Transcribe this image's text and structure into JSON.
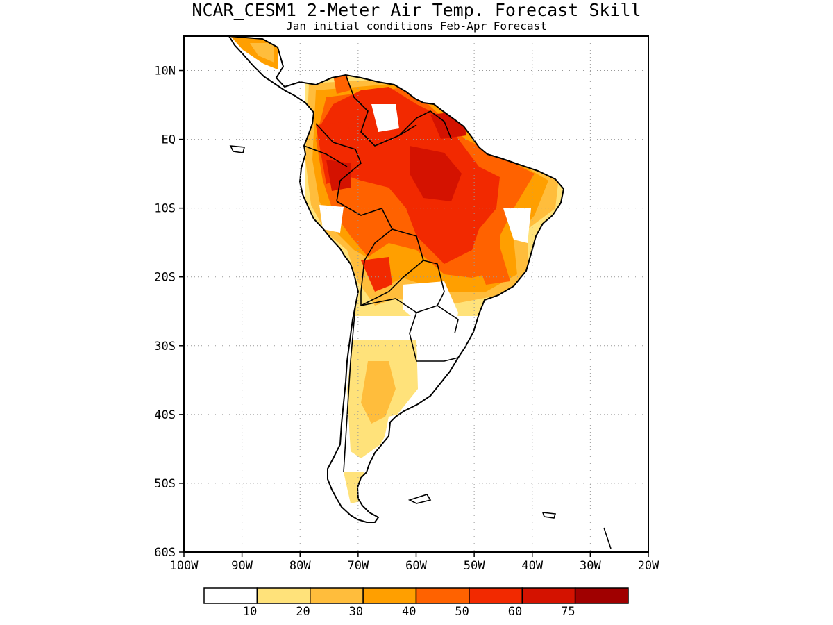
{
  "title": "NCAR_CESM1 2-Meter Air Temp. Forecast Skill",
  "subtitle": "Jan initial conditions  Feb-Apr Forecast",
  "map": {
    "lon_range": [
      -100,
      -20
    ],
    "lat_range": [
      -60,
      15
    ],
    "y_ticks": [
      {
        "lat": 10,
        "label": "10N"
      },
      {
        "lat": 0,
        "label": "EQ"
      },
      {
        "lat": -10,
        "label": "10S"
      },
      {
        "lat": -20,
        "label": "20S"
      },
      {
        "lat": -30,
        "label": "30S"
      },
      {
        "lat": -40,
        "label": "40S"
      },
      {
        "lat": -50,
        "label": "50S"
      },
      {
        "lat": -60,
        "label": "60S"
      }
    ],
    "x_ticks": [
      {
        "lon": -100,
        "label": "100W"
      },
      {
        "lon": -90,
        "label": "90W"
      },
      {
        "lon": -80,
        "label": "80W"
      },
      {
        "lon": -70,
        "label": "70W"
      },
      {
        "lon": -60,
        "label": "60W"
      },
      {
        "lon": -50,
        "label": "50W"
      },
      {
        "lon": -40,
        "label": "40W"
      },
      {
        "lon": -30,
        "label": "30W"
      },
      {
        "lon": -20,
        "label": "20W"
      }
    ],
    "gridlines": true
  },
  "colorbar": {
    "colors": [
      "#ffffff",
      "#ffe27a",
      "#ffbd3c",
      "#ff9f00",
      "#ff6200",
      "#f22900",
      "#d41200",
      "#a00000"
    ],
    "labels": [
      "10",
      "20",
      "30",
      "40",
      "50",
      "60",
      "75"
    ]
  }
}
